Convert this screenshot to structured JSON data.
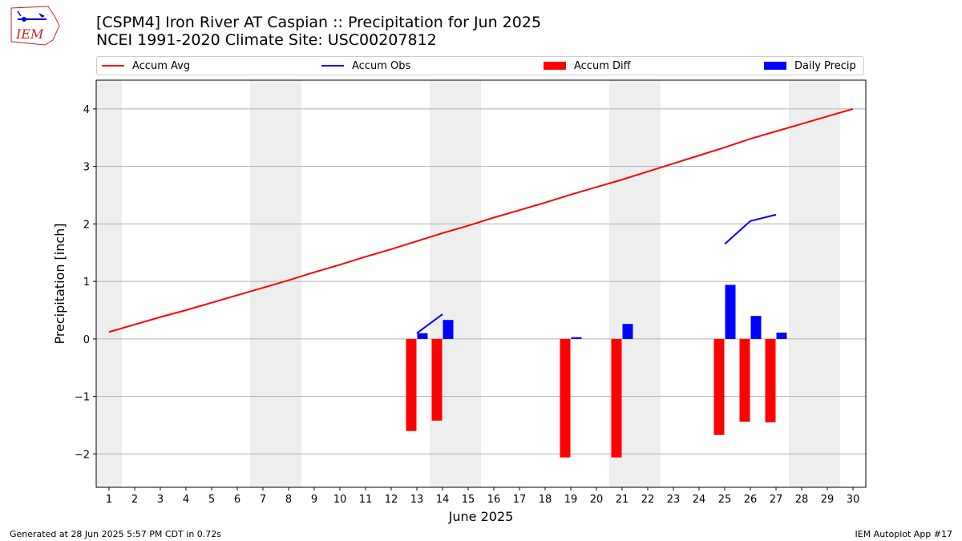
{
  "header": {
    "title_line1": "[CSPM4] Iron River  AT Caspian :: Precipitation for Jun 2025",
    "title_line2": "NCEI 1991-2020 Climate Site: USC00207812",
    "logo_text": "IEM"
  },
  "footer": {
    "generated": "Generated at 28 Jun 2025 5:57 PM CDT in 0.72s",
    "app": "IEM Autoplot App #17"
  },
  "colors": {
    "accum_avg": "#ff0000",
    "accum_obs": "#0000ff",
    "accum_diff": "#ff0000",
    "daily_precip": "#0000ff",
    "weekend_shade": "#eeeeee",
    "grid": "#b0b0b0"
  },
  "legend": [
    {
      "label": "Accum Avg",
      "kind": "line",
      "color": "#ff0000"
    },
    {
      "label": "Accum Obs",
      "kind": "line",
      "color": "#0000ff"
    },
    {
      "label": "Accum Diff",
      "kind": "bar",
      "color": "#ff0000"
    },
    {
      "label": "Daily Precip",
      "kind": "bar",
      "color": "#0000ff"
    }
  ],
  "chart_data": {
    "type": "bar",
    "title": "[CSPM4] Iron River  AT Caspian :: Precipitation for Jun 2025",
    "subtitle": "NCEI 1991-2020 Climate Site: USC00207812",
    "xlabel": "June 2025",
    "ylabel": "Precipitation [inch]",
    "xlim": [
      0.5,
      30.5
    ],
    "ylim": [
      -2.58,
      4.5
    ],
    "x_ticks": [
      1,
      2,
      3,
      4,
      5,
      6,
      7,
      8,
      9,
      10,
      11,
      12,
      13,
      14,
      15,
      16,
      17,
      18,
      19,
      20,
      21,
      22,
      23,
      24,
      25,
      26,
      27,
      28,
      29,
      30
    ],
    "y_ticks": [
      -2,
      -1,
      0,
      1,
      2,
      3,
      4
    ],
    "y_tick_labels": [
      "−2",
      "−1",
      "0",
      "1",
      "2",
      "3",
      "4"
    ],
    "grid": "horizontal",
    "legend_position": "top",
    "weekend_bands": [
      [
        0.5,
        1.5
      ],
      [
        6.5,
        8.5
      ],
      [
        13.5,
        15.5
      ],
      [
        20.5,
        22.5
      ],
      [
        27.5,
        29.5
      ]
    ],
    "series": [
      {
        "name": "Accum Avg",
        "type": "line",
        "x": [
          1,
          2,
          3,
          4,
          5,
          6,
          7,
          8,
          9,
          10,
          11,
          12,
          13,
          14,
          15,
          16,
          17,
          18,
          19,
          20,
          21,
          22,
          23,
          24,
          25,
          26,
          27,
          28,
          29,
          30
        ],
        "values": [
          0.12,
          0.25,
          0.38,
          0.5,
          0.63,
          0.76,
          0.89,
          1.02,
          1.16,
          1.29,
          1.43,
          1.56,
          1.7,
          1.84,
          1.97,
          2.11,
          2.24,
          2.37,
          2.51,
          2.64,
          2.77,
          2.91,
          3.05,
          3.19,
          3.33,
          3.48,
          3.61,
          3.74,
          3.87,
          4.0
        ]
      },
      {
        "name": "Accum Obs",
        "type": "line",
        "segments": [
          {
            "x": [
              13,
              14
            ],
            "values": [
              0.1,
              0.43
            ]
          },
          {
            "x": [
              25,
              26,
              27
            ],
            "values": [
              1.65,
              2.05,
              2.16
            ]
          }
        ]
      },
      {
        "name": "Accum Diff",
        "type": "bar",
        "x": [
          13,
          14,
          19,
          21,
          25,
          26,
          27
        ],
        "values": [
          -1.6,
          -1.42,
          -2.06,
          -2.06,
          -1.67,
          -1.44,
          -1.45
        ]
      },
      {
        "name": "Daily Precip",
        "type": "bar",
        "x": [
          13,
          14,
          19,
          21,
          25,
          26,
          27
        ],
        "values": [
          0.1,
          0.33,
          0.03,
          0.26,
          0.94,
          0.4,
          0.11
        ]
      }
    ]
  }
}
